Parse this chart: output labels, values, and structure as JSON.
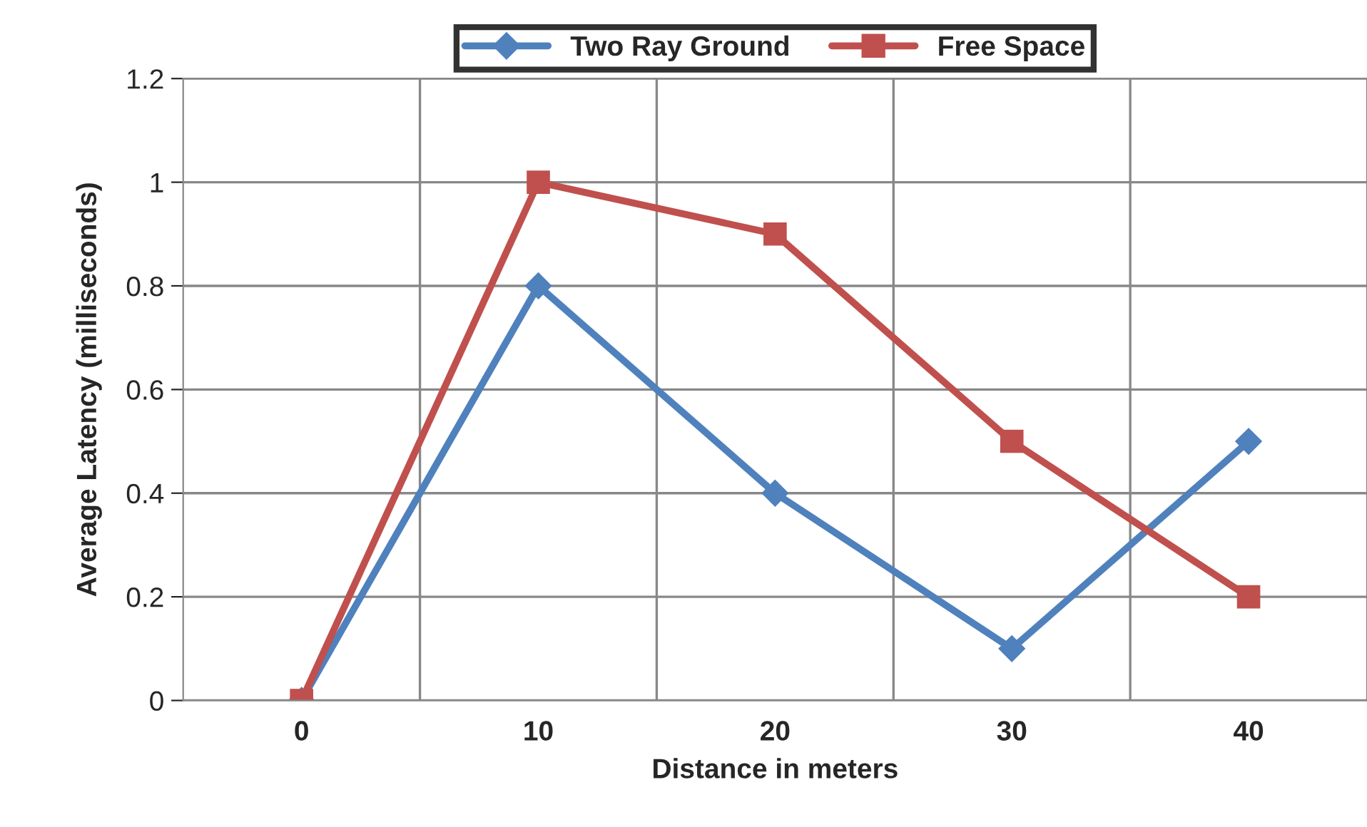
{
  "chart_data": {
    "type": "line",
    "xlabel": "Distance in meters",
    "ylabel": "Average Latency (milliseconds)",
    "categories": [
      "0",
      "10",
      "20",
      "30",
      "40"
    ],
    "series": [
      {
        "name": "Two Ray Ground",
        "color": "#4f81bd",
        "values": [
          0,
          0.8,
          0.4,
          0.1,
          0.5
        ],
        "marker": "diamond"
      },
      {
        "name": "Free Space",
        "color": "#c0504d",
        "values": [
          0,
          1,
          0.9,
          0.5,
          0.2
        ],
        "marker": "square"
      }
    ],
    "ylim": [
      0,
      1.2
    ],
    "yticks": [
      0,
      0.2,
      0.4,
      0.6,
      0.8,
      1,
      1.2
    ],
    "grid": true,
    "legend": "top",
    "line_style": "solid"
  }
}
